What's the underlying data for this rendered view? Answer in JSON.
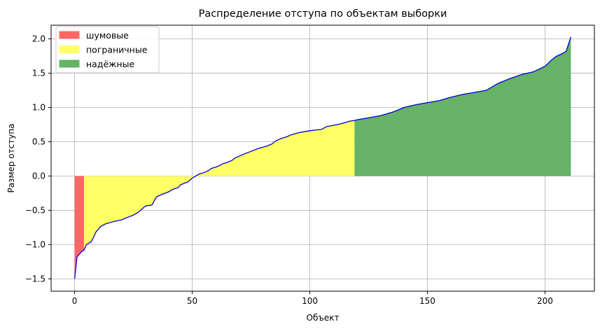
{
  "chart_data": {
    "type": "area",
    "title": "Распределение отступа по объектам выборки",
    "xlabel": "Объект",
    "ylabel": "Размер отступа",
    "xlim": [
      -10,
      221
    ],
    "ylim": [
      -1.68,
      2.2
    ],
    "x_ticks": [
      0,
      50,
      100,
      150,
      200
    ],
    "x_tick_labels": [
      "0",
      "50",
      "100",
      "150",
      "200"
    ],
    "y_ticks": [
      -1.5,
      -1.0,
      -0.5,
      0.0,
      0.5,
      1.0,
      1.5,
      2.0
    ],
    "y_tick_labels": [
      "−1.5",
      "−1.0",
      "−0.5",
      "0.0",
      "0.5",
      "1.0",
      "1.5",
      "2.0"
    ],
    "grid": true,
    "legend_position": "upper-left",
    "line_color": "#0000cc",
    "curve": {
      "x": [
        0,
        1,
        2,
        3,
        4,
        5,
        6,
        7,
        8,
        9,
        10,
        11,
        12,
        13,
        15,
        17,
        20,
        22,
        25,
        27,
        29,
        30,
        31,
        32,
        33,
        34,
        35,
        37,
        40,
        42,
        44,
        45,
        47,
        48,
        49,
        50,
        52,
        53,
        55,
        57,
        58,
        60,
        62,
        63,
        65,
        67,
        68,
        70,
        72,
        75,
        78,
        80,
        82,
        84,
        85,
        86,
        88,
        90,
        92,
        95,
        98,
        100,
        102,
        105,
        107,
        110,
        113,
        115,
        117,
        119,
        120,
        125,
        130,
        135,
        138,
        140,
        145,
        150,
        155,
        160,
        165,
        170,
        175,
        180,
        185,
        190,
        195,
        200,
        203,
        205,
        207,
        209,
        211
      ],
      "y": [
        -1.5,
        -1.18,
        -1.14,
        -1.1,
        -1.08,
        -1.0,
        -0.98,
        -0.96,
        -0.9,
        -0.82,
        -0.78,
        -0.74,
        -0.72,
        -0.7,
        -0.68,
        -0.66,
        -0.64,
        -0.61,
        -0.57,
        -0.53,
        -0.47,
        -0.44,
        -0.43,
        -0.43,
        -0.42,
        -0.35,
        -0.3,
        -0.27,
        -0.23,
        -0.19,
        -0.17,
        -0.13,
        -0.1,
        -0.09,
        -0.06,
        -0.03,
        0.01,
        0.03,
        0.05,
        0.08,
        0.11,
        0.13,
        0.16,
        0.18,
        0.2,
        0.23,
        0.26,
        0.29,
        0.32,
        0.36,
        0.4,
        0.42,
        0.44,
        0.47,
        0.5,
        0.52,
        0.55,
        0.57,
        0.6,
        0.63,
        0.65,
        0.66,
        0.67,
        0.68,
        0.72,
        0.74,
        0.76,
        0.78,
        0.8,
        0.81,
        0.82,
        0.85,
        0.88,
        0.93,
        0.97,
        1.0,
        1.04,
        1.07,
        1.1,
        1.15,
        1.19,
        1.22,
        1.25,
        1.35,
        1.42,
        1.48,
        1.52,
        1.6,
        1.7,
        1.75,
        1.78,
        1.82,
        2.03
      ]
    },
    "series": [
      {
        "name": "шумовые",
        "color": "#ff6666",
        "x_range": [
          0,
          4
        ]
      },
      {
        "name": "пограничные",
        "color": "#ffff66",
        "x_range": [
          4,
          119
        ]
      },
      {
        "name": "надёжные",
        "color": "#66b266",
        "x_range": [
          119,
          211
        ]
      }
    ]
  }
}
